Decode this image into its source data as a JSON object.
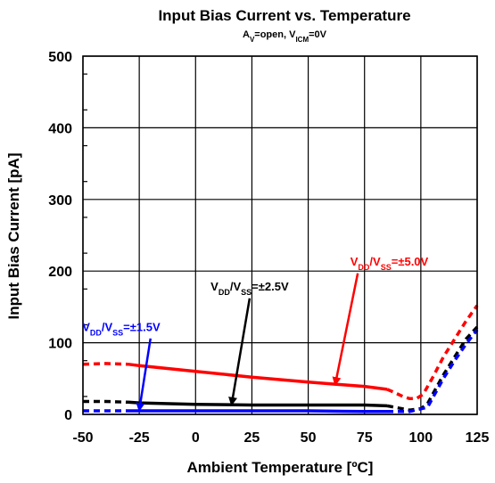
{
  "chart_data": {
    "type": "line",
    "title": "Input Bias Current vs. Temperature",
    "subtitle": {
      "parts": [
        {
          "text": "A",
          "sub": false
        },
        {
          "text": "V",
          "sub": true
        },
        {
          "text": "=open, V",
          "sub": false
        },
        {
          "text": "ICM",
          "sub": true
        },
        {
          "text": "=0V",
          "sub": false
        }
      ]
    },
    "xlabel": "Ambient Temperature [ºC]",
    "ylabel": "Input Bias Current [pA]",
    "xlim": [
      -50,
      125
    ],
    "ylim": [
      0,
      500
    ],
    "xticks": [
      -50,
      -25,
      0,
      25,
      50,
      75,
      100,
      125
    ],
    "yticks": [
      0,
      100,
      200,
      300,
      400,
      500
    ],
    "xtick_labels": [
      "-50",
      "-25",
      "0",
      "25",
      "50",
      "75",
      "100",
      "125"
    ],
    "ytick_labels": [
      "0",
      "100",
      "200",
      "300",
      "400",
      "500"
    ],
    "grid": true,
    "series": [
      {
        "color": "#ff0000",
        "width": 3.5,
        "dashed_segments": [
          [
            [
              -50,
              70
            ],
            [
              -40,
              71
            ],
            [
              -30,
              70
            ]
          ],
          [
            [
              85,
              35
            ],
            [
              88,
              31
            ],
            [
              92,
              25
            ],
            [
              95,
              22
            ],
            [
              98,
              22
            ],
            [
              101,
              28
            ],
            [
              105,
              50
            ],
            [
              110,
              80
            ],
            [
              115,
              105
            ],
            [
              120,
              130
            ],
            [
              125,
              152
            ]
          ]
        ],
        "solid_segments": [
          [
            [
              -30,
              70
            ],
            [
              -25,
              68
            ],
            [
              0,
              60
            ],
            [
              25,
              52
            ],
            [
              50,
              45
            ],
            [
              75,
              39
            ],
            [
              85,
              35
            ]
          ]
        ]
      },
      {
        "color": "#000000",
        "width": 3.5,
        "dashed_segments": [
          [
            [
              -50,
              18
            ],
            [
              -40,
              18
            ],
            [
              -30,
              17
            ]
          ],
          [
            [
              85,
              12
            ],
            [
              90,
              9
            ],
            [
              95,
              6
            ],
            [
              100,
              8
            ],
            [
              103,
              15
            ],
            [
              110,
              55
            ],
            [
              115,
              80
            ],
            [
              120,
              105
            ],
            [
              125,
              122
            ]
          ]
        ],
        "solid_segments": [
          [
            [
              -30,
              17
            ],
            [
              -25,
              16
            ],
            [
              0,
              14
            ],
            [
              25,
              13
            ],
            [
              50,
              13
            ],
            [
              75,
              13
            ],
            [
              85,
              12
            ]
          ]
        ]
      },
      {
        "color": "#0000ff",
        "width": 3.5,
        "dashed_segments": [
          [
            [
              -50,
              5
            ],
            [
              -40,
              5
            ],
            [
              -30,
              5
            ]
          ],
          [
            [
              85,
              4
            ],
            [
              95,
              4
            ],
            [
              103,
              10
            ],
            [
              110,
              50
            ],
            [
              115,
              75
            ],
            [
              120,
              98
            ],
            [
              125,
              118
            ]
          ]
        ],
        "solid_segments": [
          [
            [
              -30,
              5
            ],
            [
              -25,
              5
            ],
            [
              0,
              5
            ],
            [
              25,
              5
            ],
            [
              50,
              5
            ],
            [
              75,
              4
            ],
            [
              85,
              4
            ]
          ]
        ]
      }
    ],
    "annotations": [
      {
        "color": "#ff0000",
        "at": [
          86,
          208
        ],
        "arrow_from": [
          72,
          197
        ],
        "arrow_to": [
          62,
          42
        ],
        "parts": [
          {
            "text": "V",
            "sub": false
          },
          {
            "text": "DD",
            "sub": true
          },
          {
            "text": "/V",
            "sub": false
          },
          {
            "text": "SS",
            "sub": true
          },
          {
            "text": "=±5.0V",
            "sub": false
          }
        ]
      },
      {
        "color": "#000000",
        "at": [
          24,
          173
        ],
        "arrow_from": [
          24,
          162
        ],
        "arrow_to": [
          16,
          14
        ],
        "parts": [
          {
            "text": "V",
            "sub": false
          },
          {
            "text": "DD",
            "sub": true
          },
          {
            "text": "/V",
            "sub": false
          },
          {
            "text": "SS",
            "sub": true
          },
          {
            "text": "=±2.5V",
            "sub": false
          }
        ]
      },
      {
        "color": "#0000ff",
        "at": [
          -33,
          116
        ],
        "arrow_from": [
          -20,
          106
        ],
        "arrow_to": [
          -25,
          6
        ],
        "parts": [
          {
            "text": "V",
            "sub": false
          },
          {
            "text": "DD",
            "sub": true
          },
          {
            "text": "/V",
            "sub": false
          },
          {
            "text": "SS",
            "sub": true
          },
          {
            "text": "=±1.5V",
            "sub": false
          }
        ]
      }
    ]
  }
}
